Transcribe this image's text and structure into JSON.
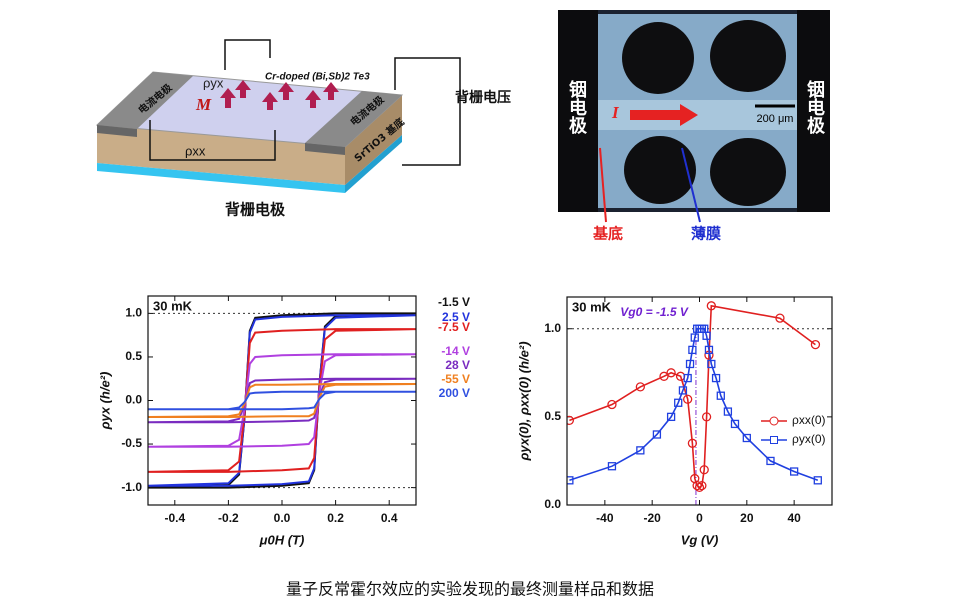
{
  "device_diagram": {
    "rho_yx": "ρyx",
    "film": "Cr-doped (Bi,Sb)2 Te3",
    "magnetization": "M",
    "left_electrode": "电流电极",
    "right_electrode": "电流电极",
    "substrate": "SrTiO3 基底",
    "rho_xx": "ρxx",
    "gate_voltage": "背栅电压",
    "gate_electrode": "背栅电极"
  },
  "photo": {
    "left_electrode": "铟电极",
    "right_electrode": "铟电极",
    "current": "I",
    "scale": "200 μm",
    "substrate": "基底",
    "film": "薄膜"
  },
  "chart_data": [
    {
      "type": "line",
      "annotation": "30 mK",
      "xlabel": "μ0H (T)",
      "ylabel": "ρyx (h/e²)",
      "xlim": [
        -0.5,
        0.5
      ],
      "ylim": [
        -1.2,
        1.2
      ],
      "xticks": [
        -0.4,
        -0.2,
        {
          "value": 0,
          "label": "0.0"
        },
        0.2,
        0.4
      ],
      "yticks": [
        {
          "value": -1,
          "label": "-1.0"
        },
        -0.5,
        {
          "value": 0,
          "label": "0.0"
        },
        0.5,
        {
          "value": 1,
          "label": "1.0"
        }
      ],
      "reference_lines": [
        1.0,
        -1.0
      ],
      "x": [
        0.5,
        0.2,
        0.0,
        -0.1,
        -0.12,
        -0.14,
        -0.16,
        -0.2,
        -0.5,
        -0.2,
        0.0,
        0.1,
        0.12,
        0.14,
        0.16,
        0.2,
        0.5
      ],
      "series": [
        {
          "name": "-1.5 V",
          "color": "#111111",
          "values": [
            1.0,
            1.0,
            0.98,
            0.95,
            0.8,
            -0.2,
            -0.85,
            -0.97,
            -1.0,
            -1.0,
            -0.98,
            -0.95,
            -0.8,
            0.2,
            0.85,
            0.97,
            1.0
          ]
        },
        {
          "name": "2.5 V",
          "color": "#2233dd",
          "values": [
            0.98,
            0.98,
            0.96,
            0.93,
            0.78,
            -0.2,
            -0.83,
            -0.95,
            -0.98,
            -0.98,
            -0.96,
            -0.93,
            -0.78,
            0.2,
            0.83,
            0.95,
            0.98
          ]
        },
        {
          "name": "-7.5 V",
          "color": "#e02020",
          "values": [
            0.82,
            0.82,
            0.8,
            0.78,
            0.66,
            -0.16,
            -0.7,
            -0.8,
            -0.82,
            -0.82,
            -0.8,
            -0.78,
            -0.66,
            0.16,
            0.7,
            0.8,
            0.82
          ]
        },
        {
          "name": "-14 V",
          "color": "#b040e0",
          "values": [
            0.53,
            0.53,
            0.52,
            0.5,
            0.42,
            -0.1,
            -0.45,
            -0.52,
            -0.53,
            -0.53,
            -0.52,
            -0.5,
            -0.42,
            0.1,
            0.45,
            0.52,
            0.53
          ]
        },
        {
          "name": "28 V",
          "color": "#7a2cc0",
          "values": [
            0.25,
            0.25,
            0.24,
            0.23,
            0.2,
            -0.05,
            -0.21,
            -0.24,
            -0.25,
            -0.25,
            -0.24,
            -0.23,
            -0.2,
            0.05,
            0.21,
            0.24,
            0.25
          ]
        },
        {
          "name": "-55 V",
          "color": "#f08020",
          "values": [
            0.19,
            0.19,
            0.18,
            0.18,
            0.15,
            -0.04,
            -0.16,
            -0.18,
            -0.19,
            -0.19,
            -0.18,
            -0.18,
            -0.15,
            0.04,
            0.16,
            0.18,
            0.19
          ]
        },
        {
          "name": "200 V",
          "color": "#3050e0",
          "values": [
            0.1,
            0.1,
            0.1,
            0.09,
            0.08,
            -0.02,
            -0.08,
            -0.1,
            -0.1,
            -0.1,
            -0.1,
            -0.09,
            -0.08,
            0.02,
            0.08,
            0.1,
            0.1
          ]
        }
      ]
    },
    {
      "type": "line",
      "annotation": "30 mK",
      "gate_annotation": "Vg0 = -1.5 V",
      "xlabel": "Vg (V)",
      "ylabel": "ρyx(0), ρxx(0) (h/e²)",
      "xlim": [
        -56,
        56
      ],
      "ylim": [
        0,
        1.18
      ],
      "xticks": [
        -40,
        -20,
        0,
        20,
        40
      ],
      "yticks": [
        {
          "value": 0,
          "label": "0.0"
        },
        0.5,
        {
          "value": 1,
          "label": "1.0"
        }
      ],
      "reference_line": 1.0,
      "gate_line": -1.5,
      "series": [
        {
          "name": "ρxx(0)",
          "color": "#e02020",
          "marker": "circle",
          "x": [
            -55,
            -37,
            -25,
            -15,
            -12,
            -8,
            -5,
            -3,
            -2,
            -1,
            0,
            1,
            2,
            3,
            4,
            5,
            34,
            49
          ],
          "values": [
            0.48,
            0.57,
            0.67,
            0.73,
            0.75,
            0.73,
            0.6,
            0.35,
            0.15,
            0.11,
            0.1,
            0.11,
            0.2,
            0.5,
            0.85,
            1.13,
            1.06,
            0.91
          ]
        },
        {
          "name": "ρyx(0)",
          "color": "#2040e0",
          "marker": "square",
          "x": [
            -55,
            -37,
            -25,
            -18,
            -12,
            -9,
            -7,
            -5,
            -4,
            -3,
            -2,
            -1,
            0,
            1,
            2,
            3,
            4,
            5,
            7,
            9,
            12,
            15,
            20,
            30,
            40,
            50
          ],
          "values": [
            0.14,
            0.22,
            0.31,
            0.4,
            0.5,
            0.58,
            0.65,
            0.72,
            0.8,
            0.88,
            0.95,
            1.0,
            1.0,
            1.0,
            1.0,
            0.96,
            0.88,
            0.8,
            0.72,
            0.62,
            0.53,
            0.46,
            0.38,
            0.25,
            0.19,
            0.14
          ]
        }
      ]
    }
  ],
  "caption": "量子反常霍尔效应的实验发现的最终测量样品和数据"
}
